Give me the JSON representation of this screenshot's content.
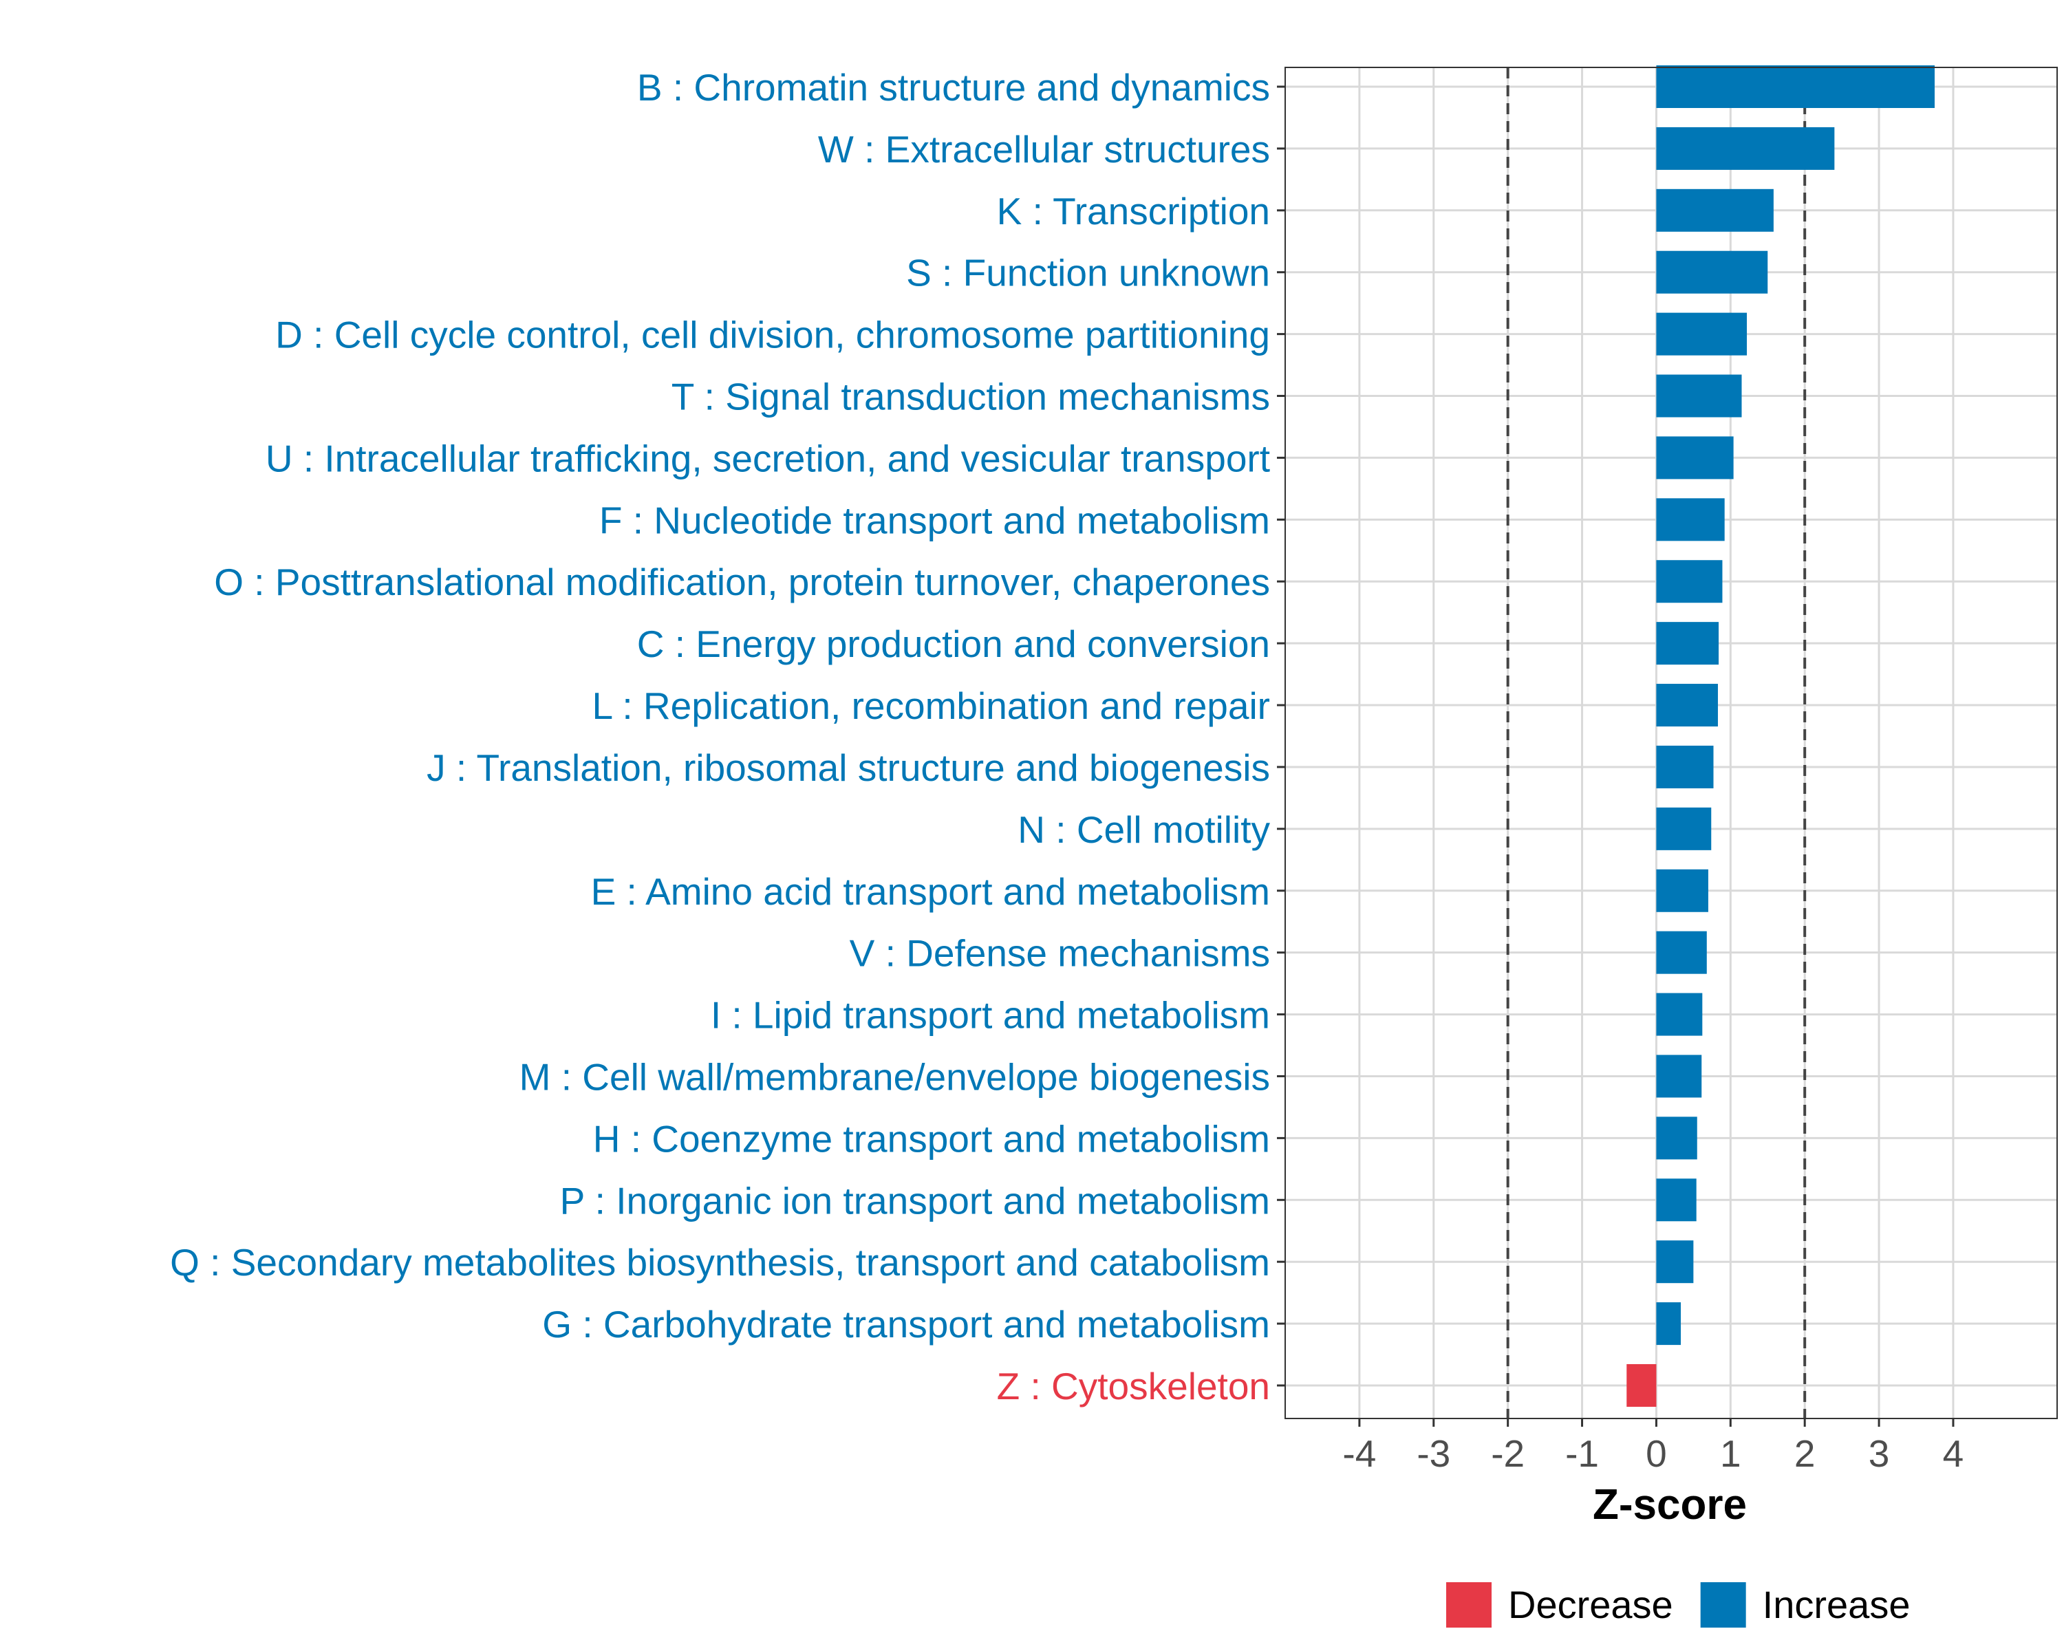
{
  "chart_data": {
    "type": "bar",
    "orientation": "horizontal",
    "title": "",
    "xlabel": "Z-score",
    "ylabel": "",
    "xlim": [
      -5,
      5.4
    ],
    "xticks": [
      -4,
      -3,
      -2,
      -1,
      0,
      1,
      2,
      3,
      4
    ],
    "xtick_labels": [
      "-4",
      "-3",
      "-2",
      "-1",
      "0",
      "1",
      "2",
      "3",
      "4"
    ],
    "reference_lines": [
      -2,
      2
    ],
    "grid": true,
    "legend_position": "bottom",
    "colors": {
      "Increase": "#0077b6",
      "Decrease": "#e63946"
    },
    "legend": [
      {
        "label": "Decrease",
        "color": "#e63946"
      },
      {
        "label": "Increase",
        "color": "#0077b6"
      }
    ],
    "categories": [
      "B : Chromatin structure and dynamics",
      "W : Extracellular structures",
      "K : Transcription",
      "S : Function unknown",
      "D : Cell cycle control, cell division, chromosome partitioning",
      "T : Signal transduction mechanisms",
      "U : Intracellular trafficking, secretion, and vesicular transport",
      "F : Nucleotide transport and metabolism",
      "O : Posttranslational modification, protein turnover, chaperones",
      "C : Energy production and conversion",
      "L : Replication, recombination and repair",
      "J : Translation, ribosomal structure and biogenesis",
      "N : Cell motility",
      "E : Amino acid transport and metabolism",
      "V : Defense mechanisms",
      "I : Lipid transport and metabolism",
      "M : Cell wall/membrane/envelope biogenesis",
      "H : Coenzyme transport and metabolism",
      "P : Inorganic ion transport and metabolism",
      "Q : Secondary metabolites biosynthesis, transport and catabolism",
      "G : Carbohydrate transport and metabolism",
      "Z : Cytoskeleton"
    ],
    "values": [
      3.75,
      2.4,
      1.58,
      1.5,
      1.22,
      1.15,
      1.04,
      0.92,
      0.89,
      0.84,
      0.83,
      0.77,
      0.74,
      0.7,
      0.68,
      0.62,
      0.61,
      0.55,
      0.54,
      0.5,
      0.33,
      -0.4
    ],
    "groups": [
      "Increase",
      "Increase",
      "Increase",
      "Increase",
      "Increase",
      "Increase",
      "Increase",
      "Increase",
      "Increase",
      "Increase",
      "Increase",
      "Increase",
      "Increase",
      "Increase",
      "Increase",
      "Increase",
      "Increase",
      "Increase",
      "Increase",
      "Increase",
      "Increase",
      "Decrease"
    ]
  }
}
